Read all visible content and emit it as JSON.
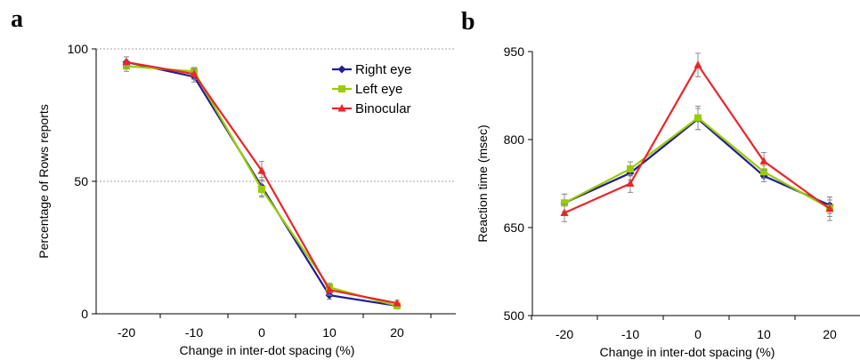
{
  "panel_labels": [
    "a",
    "b"
  ],
  "colors": {
    "right_eye": "#1f1f8f",
    "left_eye": "#99cc00",
    "binocular": "#e8262b",
    "error_bar": "#8c8c8c",
    "ref_line": "#a6a6a6"
  },
  "chart_data": [
    {
      "type": "line",
      "panel": "a",
      "title": "",
      "xlabel": "Change in inter-dot spacing (%)",
      "ylabel": "Percentage of Rows reports",
      "x": [
        -20,
        -10,
        0,
        10,
        20
      ],
      "x_tick_labels": [
        "-20",
        "-10",
        "0",
        "10",
        "20"
      ],
      "ylim": [
        0,
        100
      ],
      "y_ticks": [
        0,
        50,
        100
      ],
      "y_tick_labels": [
        "0",
        "50",
        "100"
      ],
      "reference_lines": [
        50,
        100
      ],
      "grid": false,
      "legend": "top-right",
      "series": [
        {
          "name": "Right eye",
          "color": "#1f1f8f",
          "marker": "diamond",
          "values": [
            95,
            89.5,
            48,
            7,
            3
          ],
          "errors": [
            2,
            2,
            3.5,
            1.5,
            1
          ]
        },
        {
          "name": "Left eye",
          "color": "#99cc00",
          "marker": "square",
          "values": [
            93.5,
            91.5,
            47,
            10,
            3
          ],
          "errors": [
            2,
            1.5,
            3,
            1.5,
            1
          ]
        },
        {
          "name": "Binocular",
          "color": "#e8262b",
          "marker": "triangle",
          "values": [
            95,
            90.5,
            54,
            9,
            4
          ],
          "errors": [
            2,
            2,
            3.5,
            2,
            1
          ]
        }
      ]
    },
    {
      "type": "line",
      "panel": "b",
      "title": "",
      "xlabel": "Change in inter-dot spacing (%)",
      "ylabel": "Reaction time (msec)",
      "x": [
        -20,
        -10,
        0,
        10,
        20
      ],
      "x_tick_labels": [
        "-20",
        "-10",
        "0",
        "10",
        "20"
      ],
      "ylim": [
        500,
        950
      ],
      "y_ticks": [
        500,
        650,
        800,
        950
      ],
      "y_tick_labels": [
        "500",
        "650",
        "800",
        "950"
      ],
      "grid": false,
      "legend": "none",
      "series": [
        {
          "name": "Right eye",
          "color": "#1f1f8f",
          "marker": "diamond",
          "values": [
            692,
            743,
            835,
            738,
            688
          ],
          "errors": [
            15,
            12,
            18,
            10,
            14
          ]
        },
        {
          "name": "Left eye",
          "color": "#99cc00",
          "marker": "square",
          "values": [
            692,
            750,
            837,
            745,
            683
          ],
          "errors": [
            15,
            12,
            20,
            11,
            14
          ]
        },
        {
          "name": "Binocular",
          "color": "#e8262b",
          "marker": "triangle",
          "values": [
            675,
            725,
            927,
            763,
            682
          ],
          "errors": [
            15,
            15,
            20,
            15,
            20
          ]
        }
      ]
    }
  ]
}
